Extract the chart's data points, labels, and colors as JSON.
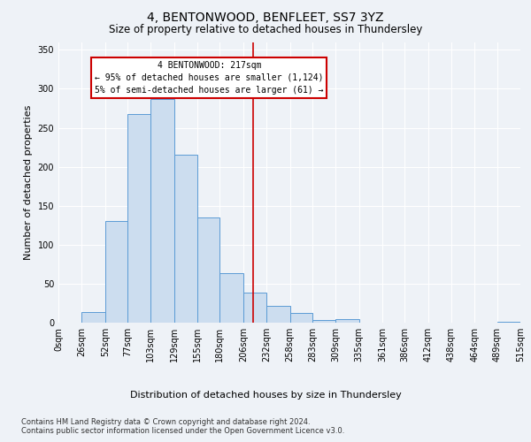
{
  "title": "4, BENTONWOOD, BENFLEET, SS7 3YZ",
  "subtitle": "Size of property relative to detached houses in Thundersley",
  "xlabel": "Distribution of detached houses by size in Thundersley",
  "ylabel": "Number of detached properties",
  "bar_left_edges": [
    0,
    26,
    52,
    77,
    103,
    129,
    155,
    180,
    206,
    232,
    258,
    283,
    309,
    335,
    361,
    386,
    412,
    438,
    464,
    489
  ],
  "bar_widths": [
    26,
    26,
    25,
    26,
    26,
    26,
    25,
    26,
    26,
    26,
    25,
    26,
    26,
    26,
    25,
    26,
    26,
    26,
    25,
    26
  ],
  "bar_heights": [
    0,
    14,
    130,
    268,
    287,
    215,
    135,
    64,
    38,
    22,
    13,
    3,
    5,
    0,
    0,
    0,
    0,
    0,
    0,
    1
  ],
  "bar_color": "#ccddef",
  "bar_edgecolor": "#5b9bd5",
  "tick_labels": [
    "0sqm",
    "26sqm",
    "52sqm",
    "77sqm",
    "103sqm",
    "129sqm",
    "155sqm",
    "180sqm",
    "206sqm",
    "232sqm",
    "258sqm",
    "283sqm",
    "309sqm",
    "335sqm",
    "361sqm",
    "386sqm",
    "412sqm",
    "438sqm",
    "464sqm",
    "489sqm",
    "515sqm"
  ],
  "ylim": [
    0,
    360
  ],
  "yticks": [
    0,
    50,
    100,
    150,
    200,
    250,
    300,
    350
  ],
  "property_value": 217,
  "vline_color": "#cc0000",
  "annotation_text": "4 BENTONWOOD: 217sqm\n← 95% of detached houses are smaller (1,124)\n5% of semi-detached houses are larger (61) →",
  "annotation_box_color": "#cc0000",
  "title_fontsize": 10,
  "subtitle_fontsize": 8.5,
  "axis_label_fontsize": 8,
  "tick_fontsize": 7,
  "footnote": "Contains HM Land Registry data © Crown copyright and database right 2024.\nContains public sector information licensed under the Open Government Licence v3.0.",
  "background_color": "#eef2f7",
  "grid_color": "#ffffff"
}
